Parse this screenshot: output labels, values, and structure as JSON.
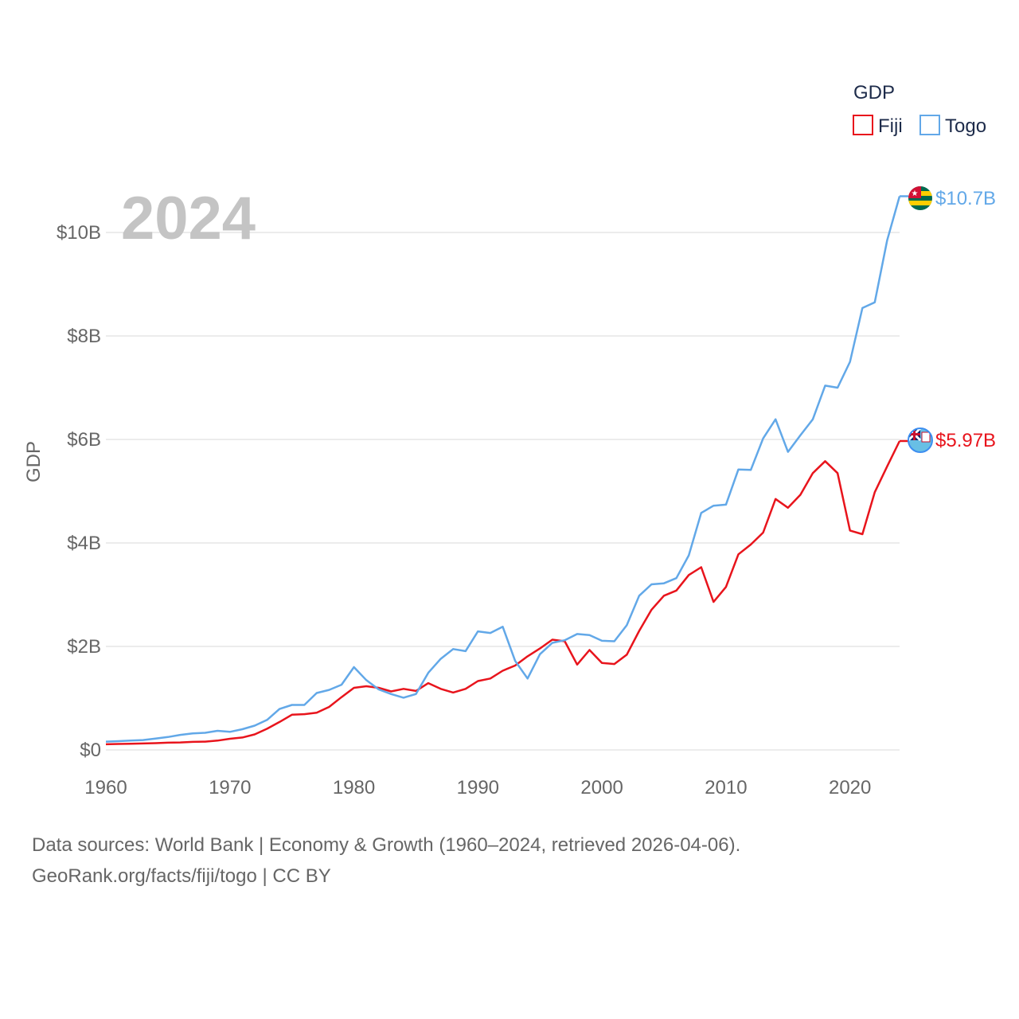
{
  "chart_data": {
    "type": "line",
    "title": "",
    "year_label": "2024",
    "xlabel": "",
    "ylabel": "GDP",
    "xlim": [
      1960,
      2024
    ],
    "ylim": [
      0,
      11
    ],
    "x_ticks": [
      1960,
      1970,
      1980,
      1990,
      2000,
      2010,
      2020
    ],
    "x_tick_labels": [
      "1960",
      "1970",
      "1980",
      "1990",
      "2000",
      "2010",
      "2020"
    ],
    "y_ticks": [
      0,
      2,
      4,
      6,
      8,
      10
    ],
    "y_tick_labels": [
      "$0",
      "$2B",
      "$4B",
      "$6B",
      "$8B",
      "$10B"
    ],
    "legend": {
      "title": "GDP",
      "position": "top-right"
    },
    "x": [
      1960,
      1961,
      1962,
      1963,
      1964,
      1965,
      1966,
      1967,
      1968,
      1969,
      1970,
      1971,
      1972,
      1973,
      1974,
      1975,
      1976,
      1977,
      1978,
      1979,
      1980,
      1981,
      1982,
      1983,
      1984,
      1985,
      1986,
      1987,
      1988,
      1989,
      1990,
      1991,
      1992,
      1993,
      1994,
      1995,
      1996,
      1997,
      1998,
      1999,
      2000,
      2001,
      2002,
      2003,
      2004,
      2005,
      2006,
      2007,
      2008,
      2009,
      2010,
      2011,
      2012,
      2013,
      2014,
      2015,
      2016,
      2017,
      2018,
      2019,
      2020,
      2021,
      2022,
      2023,
      2024
    ],
    "series": [
      {
        "name": "Fiji",
        "color": "#e8141c",
        "end_label": "$5.97B",
        "values": [
          0.11,
          0.115,
          0.12,
          0.125,
          0.13,
          0.14,
          0.145,
          0.155,
          0.16,
          0.18,
          0.215,
          0.24,
          0.3,
          0.41,
          0.54,
          0.68,
          0.69,
          0.72,
          0.83,
          1.02,
          1.2,
          1.23,
          1.2,
          1.13,
          1.18,
          1.14,
          1.29,
          1.18,
          1.11,
          1.18,
          1.33,
          1.38,
          1.53,
          1.63,
          1.81,
          1.96,
          2.13,
          2.1,
          1.65,
          1.93,
          1.68,
          1.66,
          1.84,
          2.3,
          2.71,
          2.98,
          3.08,
          3.38,
          3.53,
          2.86,
          3.15,
          3.78,
          3.97,
          4.2,
          4.85,
          4.68,
          4.93,
          5.35,
          5.58,
          5.35,
          4.24,
          4.17,
          4.98,
          5.48,
          5.97
        ]
      },
      {
        "name": "Togo",
        "color": "#62a8e8",
        "end_label": "$10.7B",
        "values": [
          0.16,
          0.17,
          0.18,
          0.19,
          0.22,
          0.25,
          0.29,
          0.32,
          0.33,
          0.37,
          0.35,
          0.4,
          0.47,
          0.58,
          0.79,
          0.87,
          0.87,
          1.1,
          1.16,
          1.26,
          1.6,
          1.35,
          1.17,
          1.08,
          1.01,
          1.08,
          1.49,
          1.76,
          1.95,
          1.91,
          2.29,
          2.26,
          2.38,
          1.72,
          1.38,
          1.85,
          2.07,
          2.12,
          2.24,
          2.22,
          2.11,
          2.1,
          2.41,
          2.98,
          3.2,
          3.22,
          3.32,
          3.76,
          4.58,
          4.72,
          4.74,
          5.42,
          5.41,
          6.02,
          6.39,
          5.76,
          6.08,
          6.39,
          7.04,
          7,
          7.5,
          8.54,
          8.65,
          9.85,
          10.7
        ]
      }
    ]
  },
  "footer": {
    "line1": "Data sources: World Bank | Economy & Growth (1960–2024, retrieved 2026-04-06).",
    "line2": "GeoRank.org/facts/fiji/togo | CC BY"
  }
}
